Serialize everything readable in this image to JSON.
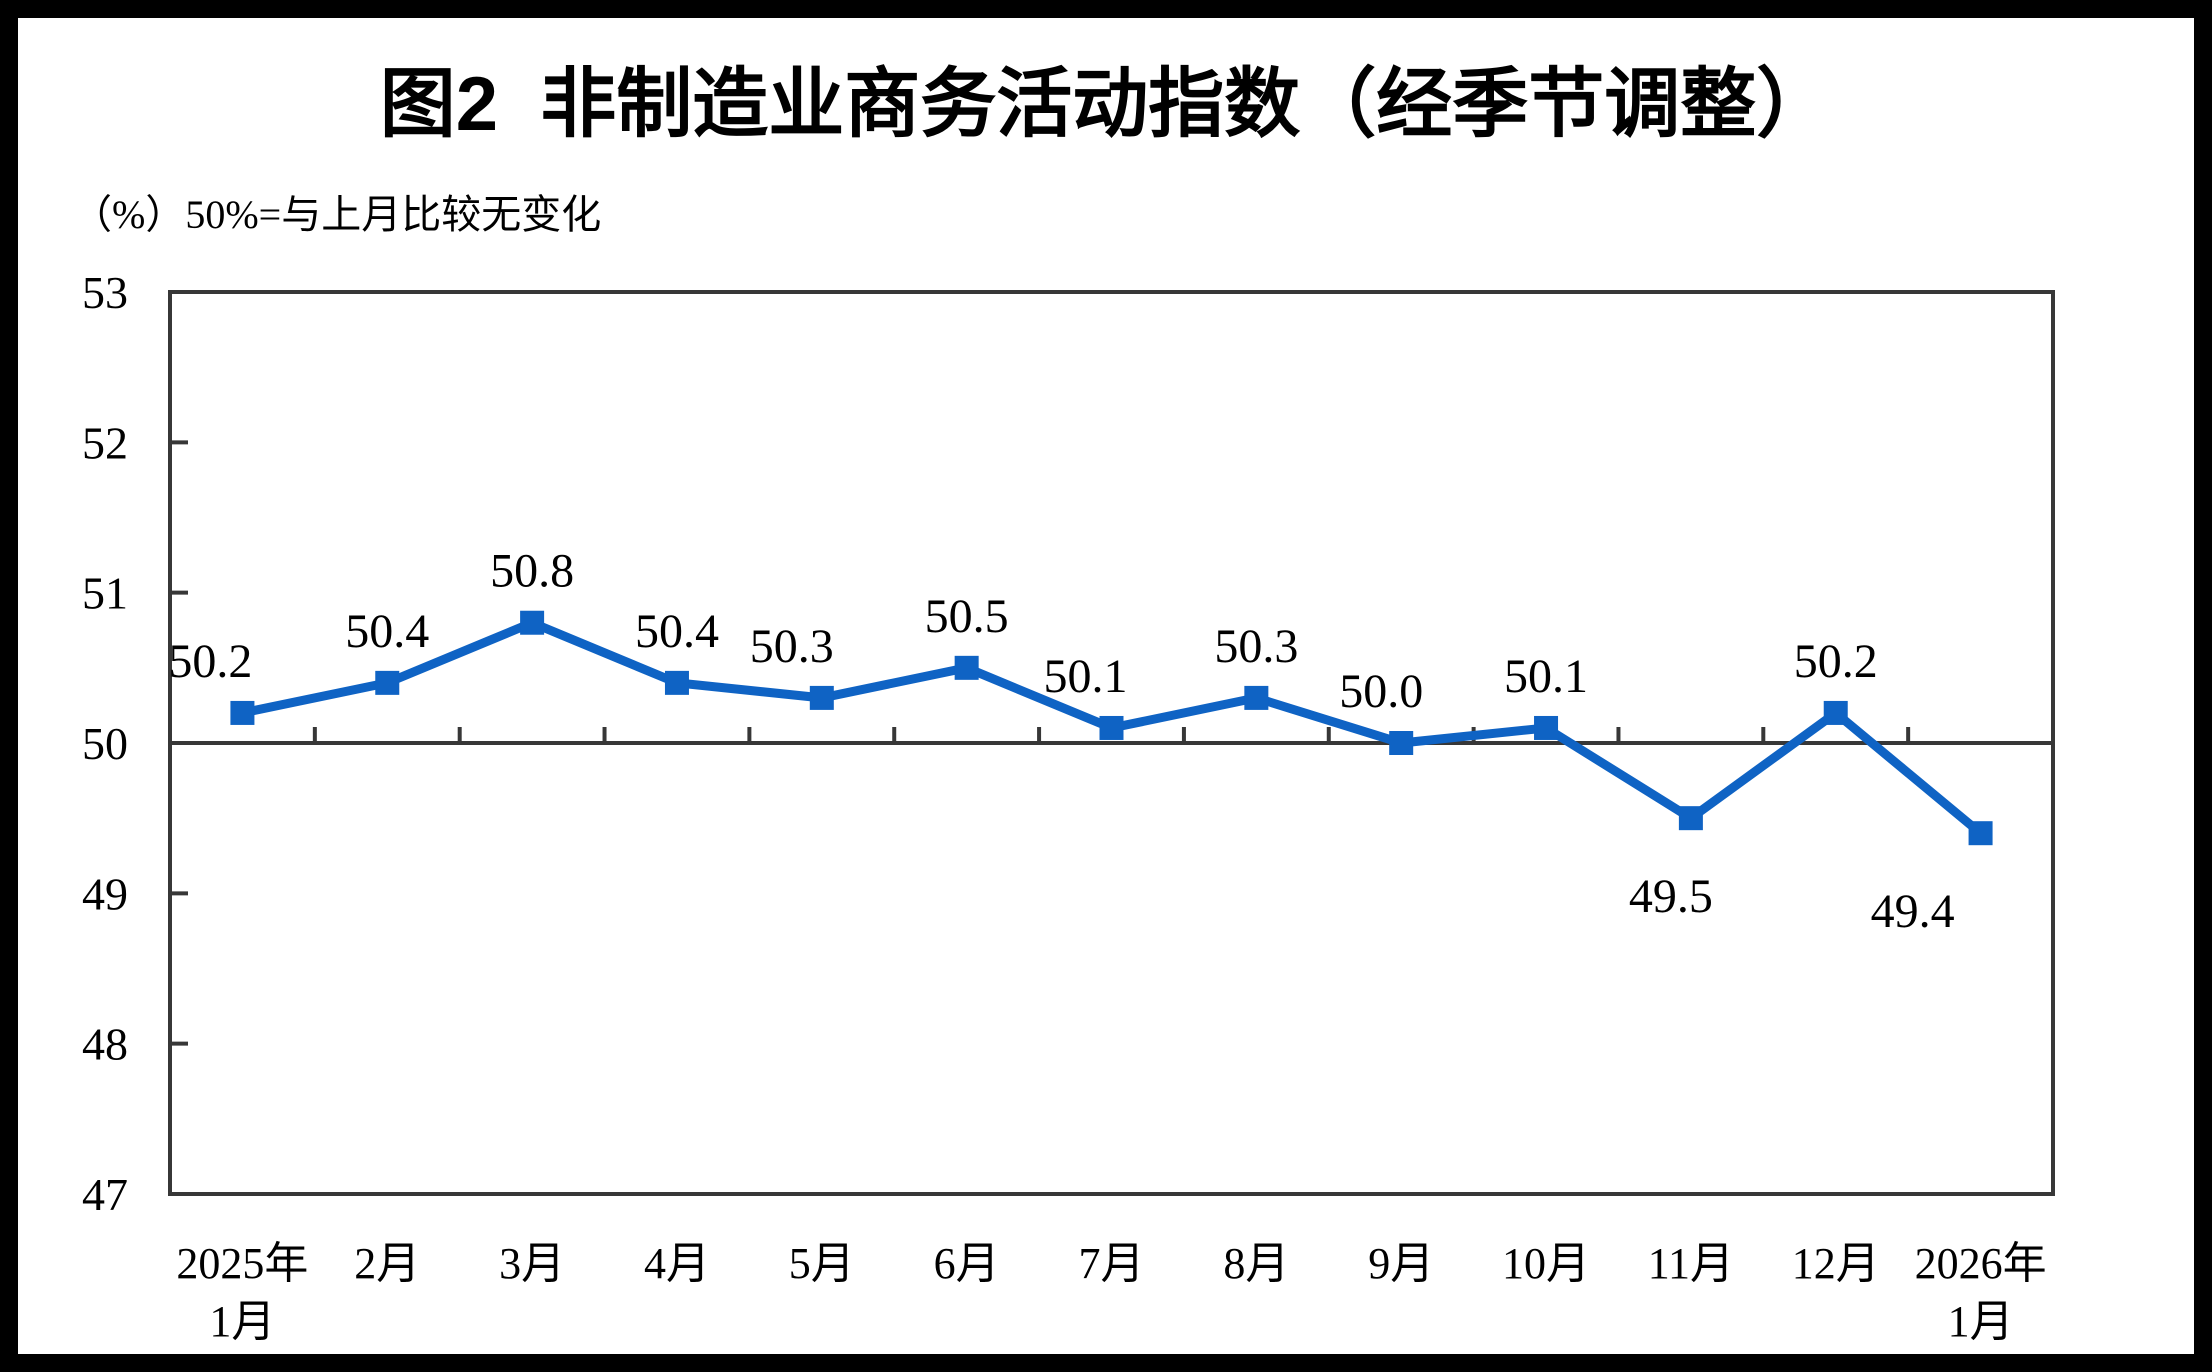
{
  "figure": {
    "title": "图2  非制造业商务活动指数（经季节调整）",
    "unit_note": "（%）50%=与上月比较无变化"
  },
  "chart_data": {
    "type": "line",
    "title": "图2 非制造业商务活动指数（经季节调整）",
    "unit_label": "（%）50%=与上月比较无变化",
    "categories": [
      "2025年\n1月",
      "2月",
      "3月",
      "4月",
      "5月",
      "6月",
      "7月",
      "8月",
      "9月",
      "10月",
      "11月",
      "12月",
      "2026年\n1月"
    ],
    "values": [
      50.2,
      50.4,
      50.8,
      50.4,
      50.3,
      50.5,
      50.1,
      50.3,
      50.0,
      50.1,
      49.5,
      50.2,
      49.4
    ],
    "data_labels": [
      "50.2",
      "50.4",
      "50.8",
      "50.4",
      "50.3",
      "50.5",
      "50.1",
      "50.3",
      "50.0",
      "50.1",
      "49.5",
      "50.2",
      "49.4"
    ],
    "ylim": [
      47,
      53
    ],
    "yticks": [
      47,
      48,
      49,
      50,
      51,
      52,
      53
    ],
    "baseline_value": 50,
    "grid": false,
    "legend": false,
    "marker": "square",
    "colors": {
      "series": "#0F63C4",
      "axis": "#373737",
      "text": "#000000",
      "background": "#FFFFFF",
      "border": "#000000"
    }
  }
}
